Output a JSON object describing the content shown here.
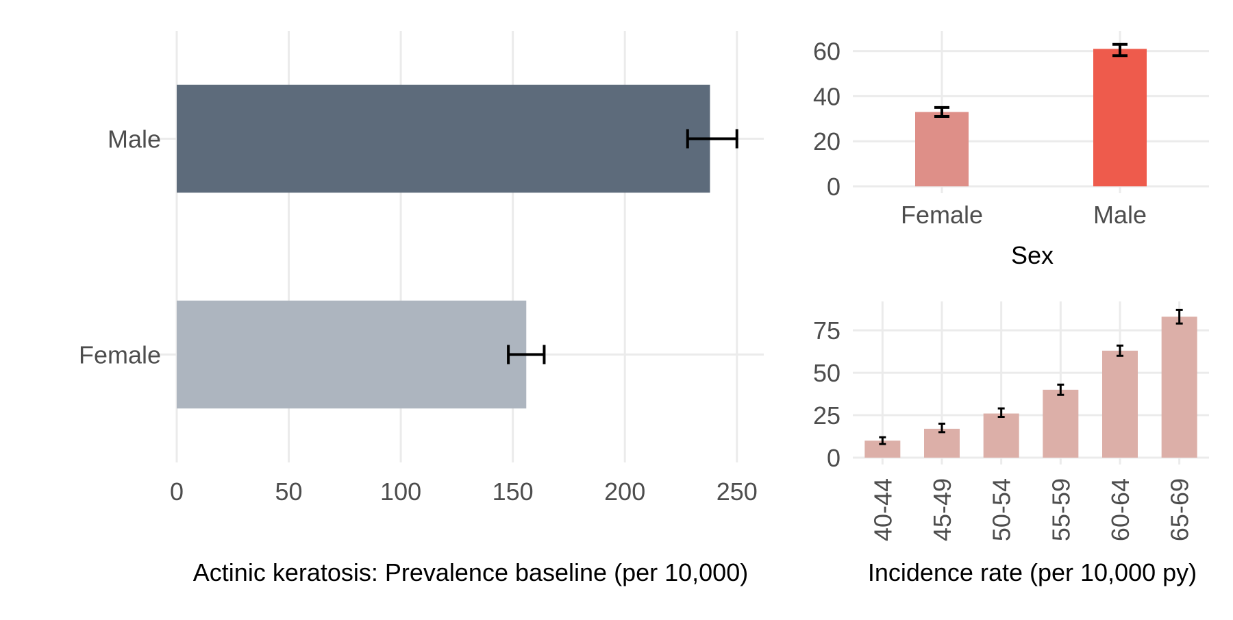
{
  "chart_data": [
    {
      "type": "bar",
      "orientation": "horizontal",
      "categories": [
        "Male",
        "Female"
      ],
      "values": [
        238,
        156
      ],
      "error_low": [
        228,
        148
      ],
      "error_high": [
        250,
        164
      ],
      "colors": [
        "#5d6b7b",
        "#adb5bf"
      ],
      "xlabel": "Actinic keratosis: Prevalence baseline (per 10,000)",
      "ylabel": "",
      "xlim": [
        0,
        262
      ],
      "xticks": [
        "0",
        "50",
        "100",
        "150",
        "200",
        "250"
      ],
      "grid": true
    },
    {
      "type": "bar",
      "categories": [
        "Female",
        "Male"
      ],
      "values": [
        33,
        61
      ],
      "error_low": [
        31,
        58
      ],
      "error_high": [
        35,
        63
      ],
      "colors": [
        "#de8f88",
        "#ee5b4c"
      ],
      "xlabel": "Sex",
      "ylabel": "",
      "ylim": [
        0,
        69
      ],
      "yticks": [
        "0",
        "20",
        "40",
        "60"
      ],
      "grid": true
    },
    {
      "type": "bar",
      "categories": [
        "40-44",
        "45-49",
        "50-54",
        "55-59",
        "60-64",
        "65-69"
      ],
      "values": [
        10,
        17,
        26,
        40,
        63,
        83
      ],
      "error_low": [
        8,
        15,
        24,
        37,
        60,
        79
      ],
      "error_high": [
        12,
        20,
        29,
        43,
        66,
        87
      ],
      "colors": [
        "#dcafa8"
      ],
      "xlabel": "Incidence rate (per 10,000 py)",
      "ylabel": "",
      "ylim": [
        0,
        92
      ],
      "yticks": [
        "0",
        "25",
        "50",
        "75"
      ],
      "grid": true
    }
  ]
}
